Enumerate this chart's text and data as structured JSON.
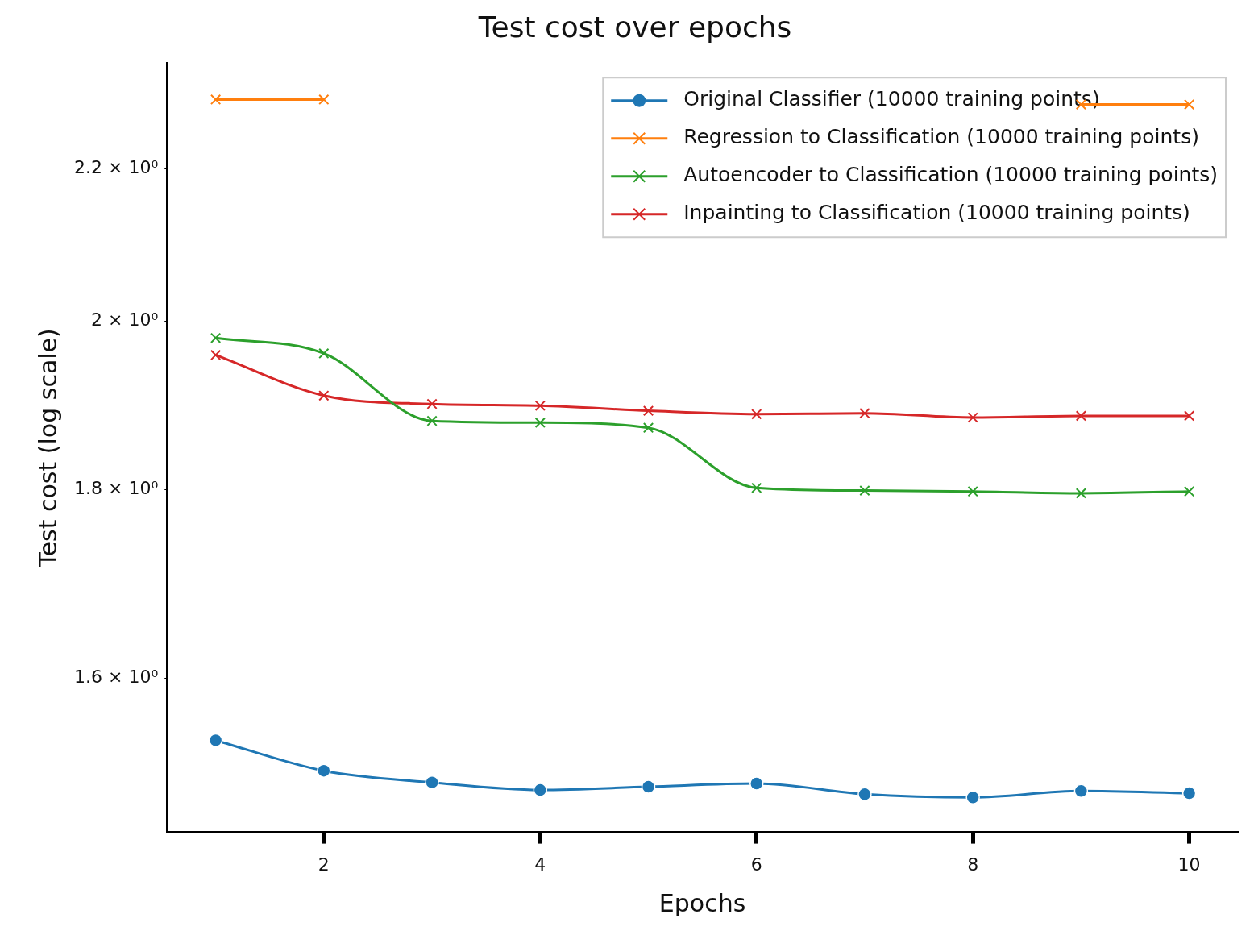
{
  "chart_data": {
    "type": "line",
    "title": "Test cost over epochs",
    "xlabel": "Epochs",
    "ylabel": "Test cost (log scale)",
    "x": [
      1,
      2,
      3,
      4,
      5,
      6,
      7,
      8,
      9,
      10
    ],
    "series": [
      {
        "name": "Original Classifier (10000 training points)",
        "color": "#1f77b4",
        "marker": "circle",
        "values": [
          1.539,
          1.51,
          1.499,
          1.492,
          1.495,
          1.498,
          1.488,
          1.485,
          1.491,
          1.489
        ]
      },
      {
        "name": "Regression to Classification (10000 training points)",
        "color": "#ff7f0e",
        "marker": "cross",
        "values": [
          2.297,
          2.297,
          null,
          null,
          null,
          null,
          null,
          null,
          2.29,
          2.29
        ]
      },
      {
        "name": "Autoencoder to Classification (10000 training points)",
        "color": "#2ca02c",
        "marker": "cross",
        "values": [
          1.979,
          1.96,
          1.879,
          1.877,
          1.871,
          1.802,
          1.799,
          1.798,
          1.796,
          1.798
        ]
      },
      {
        "name": "Inpainting to Classification (10000 training points)",
        "color": "#d62728",
        "marker": "cross",
        "values": [
          1.958,
          1.909,
          1.899,
          1.897,
          1.891,
          1.887,
          1.888,
          1.883,
          1.885,
          1.885
        ]
      }
    ],
    "log": "y",
    "xlim": [
      0.55,
      10.45
    ],
    "ylim": [
      1.453,
      2.35
    ],
    "xticks": [
      2,
      4,
      6,
      8,
      10
    ],
    "yticks": [
      {
        "value": 1.6,
        "label": "1.6 × 10⁰"
      },
      {
        "value": 1.8,
        "label": "1.8 × 10⁰"
      },
      {
        "value": 2,
        "label": "2 × 10⁰"
      },
      {
        "value": 2.2,
        "label": "2.2 × 10⁰"
      }
    ],
    "grid": false,
    "legend": "top right",
    "line_style": "solid"
  }
}
